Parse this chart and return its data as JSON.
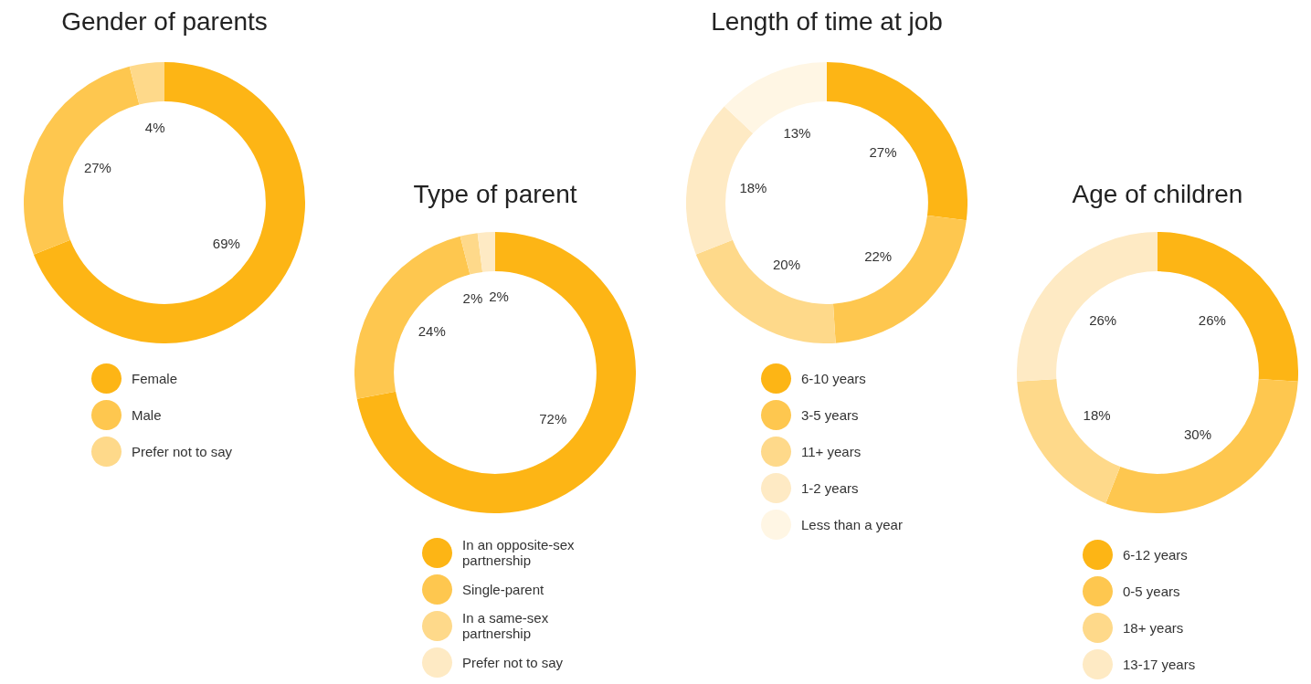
{
  "chart_data": [
    {
      "type": "donut",
      "title": "Gender of parents",
      "categories": [
        "Female",
        "Male",
        "Prefer not to say"
      ],
      "values": [
        69,
        27,
        4
      ],
      "value_labels": [
        "69%",
        "27%",
        "4%"
      ],
      "colors": [
        "#fdb515",
        "#fec74f",
        "#fed98a"
      ],
      "legend": "bottom"
    },
    {
      "type": "donut",
      "title": "Type of parent",
      "categories": [
        "In an opposite-sex partnership",
        "Single-parent",
        "In a same-sex partnership",
        "Prefer not to say"
      ],
      "values": [
        72,
        24,
        2,
        2
      ],
      "value_labels": [
        "72%",
        "24%",
        "2%",
        "2%"
      ],
      "colors": [
        "#fdb515",
        "#fec74f",
        "#fed98a",
        "#feeac4"
      ],
      "legend": "bottom"
    },
    {
      "type": "donut",
      "title": "Length of time at job",
      "categories": [
        "6-10 years",
        "3-5 years",
        "11+ years",
        "1-2 years",
        "Less than a year"
      ],
      "values": [
        27,
        22,
        20,
        18,
        13
      ],
      "value_labels": [
        "27%",
        "22%",
        "20%",
        "18%",
        "13%"
      ],
      "colors": [
        "#fdb515",
        "#fec74f",
        "#fed98a",
        "#feeac4",
        "#fff6e4"
      ],
      "legend": "bottom"
    },
    {
      "type": "donut",
      "title": "Age of children",
      "categories": [
        "6-12 years",
        "0-5 years",
        "18+ years",
        "13-17 years"
      ],
      "values": [
        26,
        30,
        18,
        26
      ],
      "value_labels": [
        "26%",
        "30%",
        "18%",
        "26%"
      ],
      "colors": [
        "#fdb515",
        "#fec74f",
        "#fed98a",
        "#feeac4"
      ],
      "legend": "bottom"
    }
  ]
}
